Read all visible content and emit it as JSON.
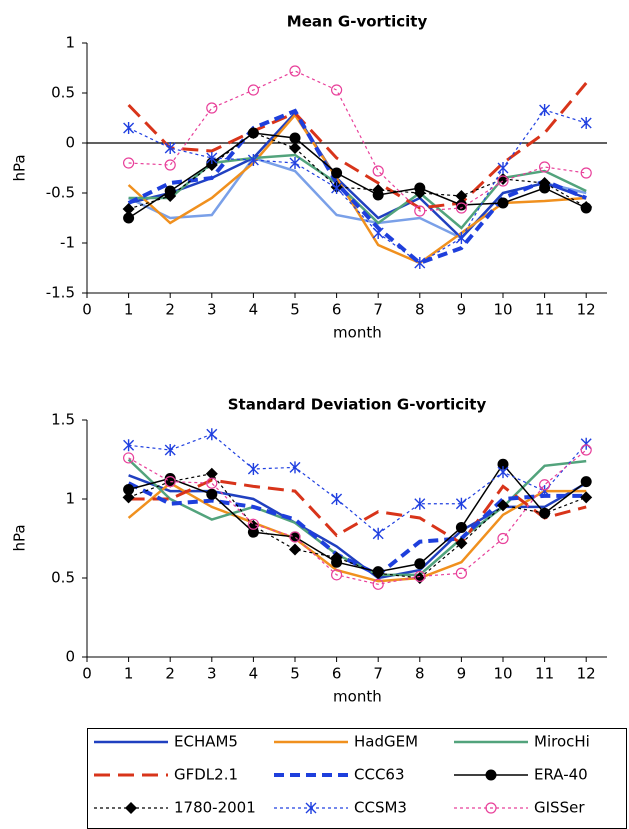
{
  "chart_data": [
    {
      "type": "line",
      "title": "Mean G-vorticity",
      "x_label": "month",
      "y_label": "hPa",
      "x": [
        1,
        2,
        3,
        4,
        5,
        6,
        7,
        8,
        9,
        10,
        11,
        12
      ],
      "xlim": [
        0,
        12.5
      ],
      "xticks": [
        0,
        1,
        2,
        3,
        4,
        5,
        6,
        7,
        8,
        9,
        10,
        11,
        12
      ],
      "ylim": [
        -1.5,
        1
      ],
      "yticks": [
        1,
        0.5,
        0,
        -0.5,
        -1,
        -1.5
      ],
      "hline": 0,
      "series": [
        {
          "color": "#7aa0e8",
          "width": 2.5,
          "dash": "none",
          "marker": "none",
          "values": [
            -0.55,
            -0.75,
            -0.72,
            -0.15,
            -0.28,
            -0.72,
            -0.8,
            -0.75,
            -0.95,
            -0.5,
            -0.4,
            -0.5
          ]
        },
        {
          "name": "ECHAM5",
          "color": "#2040c0",
          "width": 2.5,
          "dash": "none",
          "marker": "none",
          "values": [
            -0.6,
            -0.5,
            -0.35,
            -0.15,
            0.3,
            -0.35,
            -0.75,
            -0.55,
            -0.95,
            -0.5,
            -0.4,
            -0.55
          ]
        },
        {
          "name": "HadGEM",
          "color": "#f0901e",
          "width": 2.5,
          "dash": "none",
          "marker": "none",
          "values": [
            -0.42,
            -0.8,
            -0.55,
            -0.2,
            0.28,
            -0.35,
            -1.02,
            -1.2,
            -0.9,
            -0.6,
            -0.58,
            -0.55
          ]
        },
        {
          "name": "MirocHi",
          "color": "#52a37c",
          "width": 2.5,
          "dash": "none",
          "marker": "none",
          "values": [
            -0.55,
            -0.55,
            -0.2,
            -0.15,
            -0.12,
            -0.4,
            -0.8,
            -0.5,
            -0.85,
            -0.35,
            -0.28,
            -0.48
          ]
        },
        {
          "name": "GFDL2.1",
          "color": "#d8341a",
          "width": 3,
          "dash": "16 8",
          "marker": "none",
          "values": [
            0.38,
            -0.05,
            -0.08,
            0.12,
            0.3,
            -0.15,
            -0.4,
            -0.65,
            -0.6,
            -0.2,
            0.1,
            0.6
          ]
        },
        {
          "name": "CCC63",
          "color": "#1e3fdc",
          "width": 4,
          "dash": "10 6",
          "marker": "none",
          "values": [
            -0.6,
            -0.4,
            -0.35,
            0.15,
            0.32,
            -0.4,
            -0.85,
            -1.2,
            -1.05,
            -0.55,
            -0.38,
            -0.55
          ]
        },
        {
          "name": "ERA-40",
          "color": "#000000",
          "width": 1.5,
          "dash": "none",
          "marker": "dot",
          "values": [
            -0.75,
            -0.48,
            -0.2,
            0.1,
            0.05,
            -0.3,
            -0.52,
            -0.45,
            -0.62,
            -0.6,
            -0.45,
            -0.65
          ]
        },
        {
          "name": "1780-2001",
          "color": "#000000",
          "width": 1.2,
          "dash": "3 3",
          "marker": "diamond",
          "values": [
            -0.66,
            -0.53,
            -0.22,
            0.1,
            -0.05,
            -0.44,
            -0.47,
            -0.5,
            -0.53,
            -0.36,
            -0.4,
            -0.64
          ]
        },
        {
          "name": "CCSM3",
          "color": "#2040e0",
          "width": 1.2,
          "dash": "3 3",
          "marker": "star",
          "values": [
            0.15,
            -0.05,
            -0.15,
            -0.17,
            -0.2,
            -0.45,
            -0.9,
            -1.2,
            -0.95,
            -0.25,
            0.33,
            0.2
          ]
        },
        {
          "name": "GISSer",
          "color": "#e8409a",
          "width": 1.2,
          "dash": "3 3",
          "marker": "ring",
          "values": [
            -0.2,
            -0.22,
            0.35,
            0.53,
            0.72,
            0.53,
            -0.28,
            -0.68,
            -0.65,
            -0.38,
            -0.24,
            -0.3
          ]
        }
      ]
    },
    {
      "type": "line",
      "title": "Standard Deviation G-vorticity",
      "x_label": "month",
      "y_label": "hPa",
      "x": [
        1,
        2,
        3,
        4,
        5,
        6,
        7,
        8,
        9,
        10,
        11,
        12
      ],
      "xlim": [
        0,
        12.5
      ],
      "xticks": [
        0,
        1,
        2,
        3,
        4,
        5,
        6,
        7,
        8,
        9,
        10,
        11,
        12
      ],
      "ylim": [
        0,
        1.5
      ],
      "yticks": [
        1.5,
        1,
        0.5,
        0
      ],
      "series": [
        {
          "color": "#2040c0",
          "width": 2.5,
          "dash": "none",
          "marker": "none",
          "values": [
            1.15,
            1.05,
            1.05,
            1.0,
            0.85,
            0.7,
            0.5,
            0.55,
            0.8,
            0.95,
            0.95,
            1.1
          ]
        },
        {
          "color": "#f0901e",
          "width": 2.5,
          "dash": "none",
          "marker": "none",
          "values": [
            0.88,
            1.1,
            0.95,
            0.85,
            0.75,
            0.55,
            0.48,
            0.5,
            0.6,
            0.9,
            1.05,
            1.05
          ]
        },
        {
          "color": "#52a37c",
          "width": 2.5,
          "dash": "none",
          "marker": "none",
          "values": [
            1.25,
            1.0,
            0.87,
            0.95,
            0.85,
            0.65,
            0.52,
            0.52,
            0.75,
            0.95,
            1.21,
            1.24
          ]
        },
        {
          "color": "#d8341a",
          "width": 3,
          "dash": "16 8",
          "marker": "none",
          "values": [
            1.0,
            1.0,
            1.12,
            1.08,
            1.05,
            0.77,
            0.92,
            0.88,
            0.72,
            1.08,
            0.88,
            0.95
          ]
        },
        {
          "color": "#1e3fdc",
          "width": 4,
          "dash": "10 6",
          "marker": "none",
          "values": [
            1.1,
            0.97,
            0.99,
            0.95,
            0.87,
            0.65,
            0.52,
            0.73,
            0.75,
            1.0,
            1.02,
            1.02
          ]
        },
        {
          "color": "#000000",
          "width": 1.5,
          "dash": "none",
          "marker": "dot",
          "values": [
            1.06,
            1.13,
            1.03,
            0.79,
            0.76,
            0.6,
            0.54,
            0.59,
            0.82,
            1.22,
            0.91,
            1.11
          ]
        },
        {
          "color": "#000000",
          "width": 1.2,
          "dash": "3 3",
          "marker": "diamond",
          "values": [
            1.01,
            1.11,
            1.16,
            0.83,
            0.68,
            0.63,
            0.53,
            0.5,
            0.72,
            0.96,
            0.91,
            1.01
          ]
        },
        {
          "color": "#2040e0",
          "width": 1.2,
          "dash": "3 3",
          "marker": "star",
          "values": [
            1.34,
            1.31,
            1.41,
            1.19,
            1.2,
            1.0,
            0.78,
            0.97,
            0.97,
            1.17,
            1.05,
            1.35
          ]
        },
        {
          "color": "#e8409a",
          "width": 1.2,
          "dash": "3 3",
          "marker": "ring",
          "values": [
            1.26,
            1.11,
            1.1,
            0.84,
            0.76,
            0.52,
            0.46,
            0.51,
            0.53,
            0.75,
            1.09,
            1.31
          ]
        }
      ]
    }
  ]
}
